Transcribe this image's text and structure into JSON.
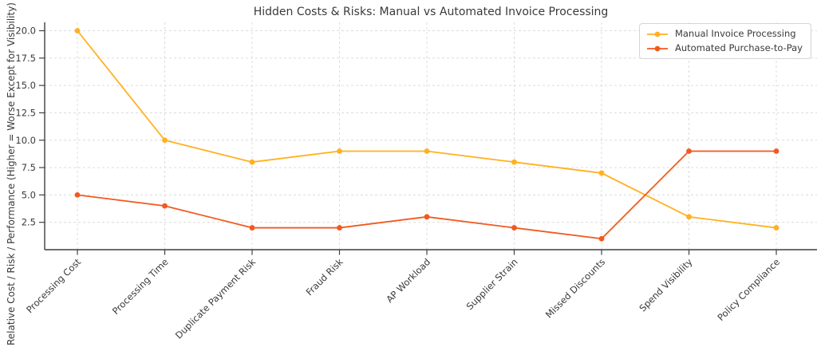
{
  "chart_data": {
    "type": "line",
    "title": "Hidden Costs & Risks: Manual vs Automated Invoice Processing",
    "ylabel": "Relative Cost / Risk / Performance (Higher = Worse Except for Visibility)",
    "xlabel": "",
    "categories": [
      "Processing Cost",
      "Processing Time",
      "Duplicate Payment Risk",
      "Fraud Risk",
      "AP Workload",
      "Supplier Strain",
      "Missed Discounts",
      "Spend Visibility",
      "Policy Compliance"
    ],
    "yticks": [
      "2.5",
      "5.0",
      "7.5",
      "10.0",
      "12.5",
      "15.0",
      "17.5",
      "20.0"
    ],
    "ylim": [
      0,
      20.8
    ],
    "grid": true,
    "grid_style": "dashed",
    "legend_position": "upper right",
    "series": [
      {
        "name": "Manual Invoice Processing",
        "color": "#FFB120",
        "marker": "circle",
        "values": [
          20,
          10,
          8,
          9,
          9,
          8,
          7,
          3,
          2
        ]
      },
      {
        "name": "Automated Purchase-to-Pay",
        "color": "#F2591F",
        "marker": "circle",
        "values": [
          5,
          4,
          2,
          2,
          3,
          2,
          1,
          9,
          9
        ]
      }
    ],
    "colors": {
      "text": "#3a3a3a",
      "grid": "#dcdcdc",
      "spine": "#3f3f3f",
      "background": "#ffffff"
    }
  }
}
